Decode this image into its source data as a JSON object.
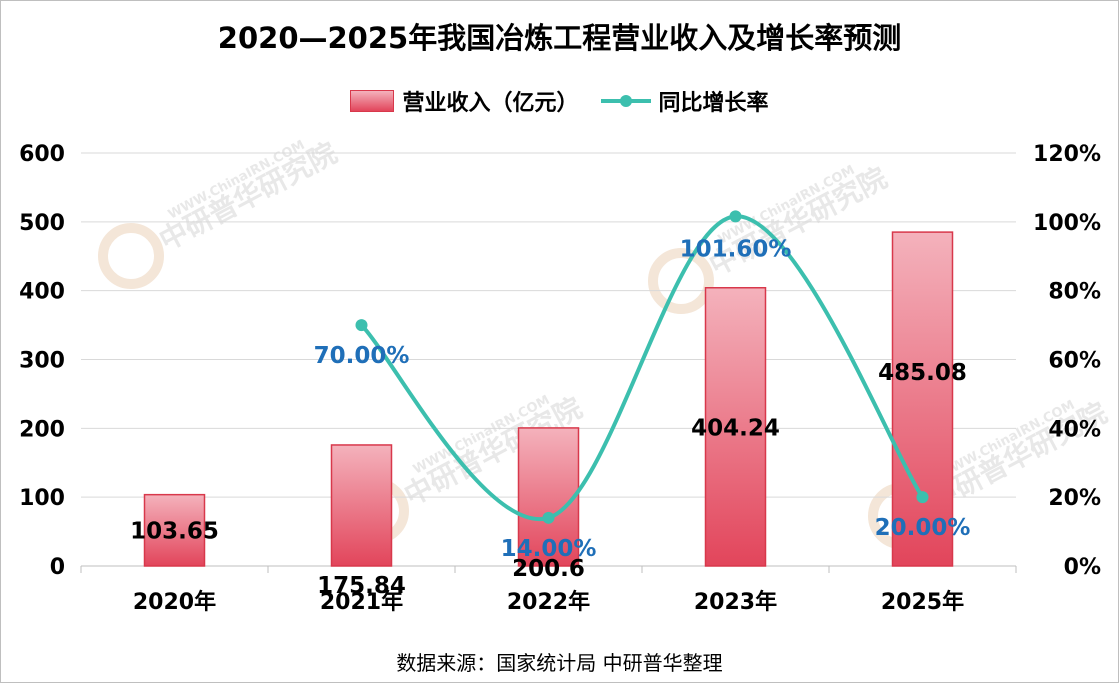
{
  "chart_data": {
    "type": "bar+line",
    "title": "2020—2025年我国冶炼工程营业收入及增长率预测",
    "categories": [
      "2020年",
      "2021年",
      "2022年",
      "2023年",
      "2025年"
    ],
    "series": [
      {
        "name": "营业收入（亿元）",
        "type": "bar",
        "axis": "left",
        "values": [
          103.65,
          175.84,
          200.6,
          404.24,
          485.08
        ],
        "labels": [
          "103.65",
          "175.84",
          "200.6",
          "404.24",
          "485.08"
        ]
      },
      {
        "name": "同比增长率",
        "type": "line",
        "axis": "right",
        "values": [
          null,
          70.0,
          14.0,
          101.6,
          20.0
        ],
        "labels": [
          "",
          "70.00%",
          "14.00%",
          "101.60%",
          "20.00%"
        ]
      }
    ],
    "y_left": {
      "min": 0,
      "max": 600,
      "ticks": [
        "0",
        "100",
        "200",
        "300",
        "400",
        "500",
        "600"
      ]
    },
    "y_right": {
      "min": 0,
      "max": 120,
      "ticks": [
        "0%",
        "20%",
        "40%",
        "60%",
        "80%",
        "100%",
        "120%"
      ]
    },
    "grid": true,
    "legend_position": "top",
    "colors": {
      "bar_top": "#f4b2bc",
      "bar_bottom": "#e2455b",
      "bar_border": "#d8384b",
      "line": "#3cbfae",
      "rate_label": "#1f6fb8"
    }
  },
  "source": "数据来源：国家统计局 中研普华整理",
  "watermark": {
    "text": "中研普华研究院",
    "url": "WWW.ChinaIRN.COM",
    "logo": "CIRN"
  }
}
